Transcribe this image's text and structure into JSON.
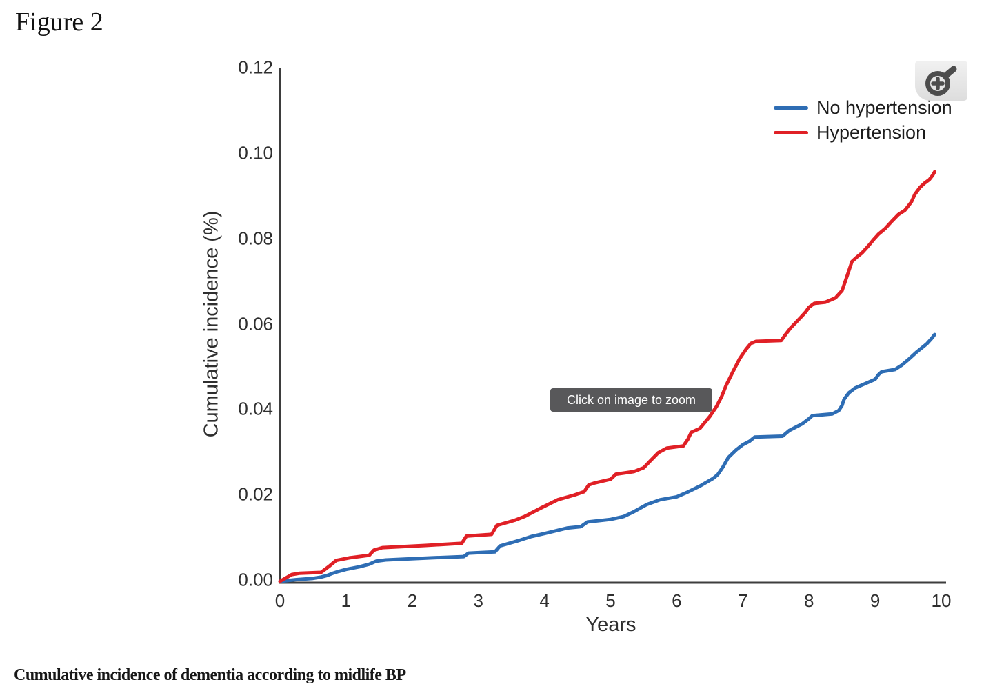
{
  "figure_label": "Figure 2",
  "caption": "Cumulative incidence of dementia according to midlife BP",
  "tooltip_text": "Click on image to zoom",
  "zoom_button": {
    "icon": "magnifier-plus-icon"
  },
  "colors": {
    "no_hypertension_line": "#2e6db4",
    "hypertension_line": "#e02026",
    "axis": "#3d3d3d",
    "tooltip_bg": "#58585a",
    "tooltip_text": "#ffffff",
    "zoom_icon": "#4d4d4d"
  },
  "chart_data": {
    "type": "line",
    "title": "",
    "xlabel": "Years",
    "ylabel": "Cumulative incidence (%)",
    "xlim": [
      0,
      10
    ],
    "ylim": [
      0,
      0.12
    ],
    "x_ticks": [
      "0",
      "1",
      "2",
      "3",
      "4",
      "5",
      "6",
      "7",
      "8",
      "9",
      "10"
    ],
    "y_ticks": [
      "0.00",
      "0.02",
      "0.04",
      "0.06",
      "0.08",
      "0.10",
      "0.12"
    ],
    "grid": false,
    "legend_position": "top-right",
    "series": [
      {
        "name": "No hypertension",
        "color": "#2e6db4",
        "points": [
          [
            0,
            0
          ],
          [
            0.25,
            0.0004
          ],
          [
            0.5,
            0.0007
          ],
          [
            0.62,
            0.001
          ],
          [
            0.72,
            0.0014
          ],
          [
            0.8,
            0.0019
          ],
          [
            0.88,
            0.0023
          ],
          [
            1.0,
            0.0028
          ],
          [
            1.2,
            0.0034
          ],
          [
            1.35,
            0.004
          ],
          [
            1.45,
            0.0047
          ],
          [
            1.6,
            0.005
          ],
          [
            2.3,
            0.0055
          ],
          [
            2.78,
            0.0058
          ],
          [
            2.85,
            0.0066
          ],
          [
            3.25,
            0.0069
          ],
          [
            3.33,
            0.0083
          ],
          [
            3.6,
            0.0095
          ],
          [
            3.8,
            0.0105
          ],
          [
            4.0,
            0.0112
          ],
          [
            4.35,
            0.0125
          ],
          [
            4.55,
            0.0128
          ],
          [
            4.65,
            0.0139
          ],
          [
            5.0,
            0.0145
          ],
          [
            5.2,
            0.0152
          ],
          [
            5.35,
            0.0163
          ],
          [
            5.55,
            0.018
          ],
          [
            5.75,
            0.0191
          ],
          [
            6.0,
            0.0198
          ],
          [
            6.15,
            0.0208
          ],
          [
            6.35,
            0.0223
          ],
          [
            6.55,
            0.0241
          ],
          [
            6.62,
            0.025
          ],
          [
            6.7,
            0.0268
          ],
          [
            6.78,
            0.029
          ],
          [
            6.9,
            0.0308
          ],
          [
            7.0,
            0.032
          ],
          [
            7.1,
            0.0328
          ],
          [
            7.18,
            0.0338
          ],
          [
            7.6,
            0.034
          ],
          [
            7.7,
            0.0353
          ],
          [
            7.9,
            0.0369
          ],
          [
            8.0,
            0.0381
          ],
          [
            8.05,
            0.0388
          ],
          [
            8.35,
            0.0392
          ],
          [
            8.45,
            0.04
          ],
          [
            8.5,
            0.0412
          ],
          [
            8.53,
            0.0426
          ],
          [
            8.6,
            0.0441
          ],
          [
            8.7,
            0.0453
          ],
          [
            8.85,
            0.0463
          ],
          [
            9.0,
            0.0473
          ],
          [
            9.05,
            0.0484
          ],
          [
            9.1,
            0.0491
          ],
          [
            9.3,
            0.0496
          ],
          [
            9.4,
            0.0506
          ],
          [
            9.5,
            0.0519
          ],
          [
            9.62,
            0.0536
          ],
          [
            9.7,
            0.0546
          ],
          [
            9.78,
            0.0556
          ],
          [
            9.85,
            0.0568
          ],
          [
            9.9,
            0.0578
          ]
        ]
      },
      {
        "name": "Hypertension",
        "color": "#e02026",
        "points": [
          [
            0,
            0
          ],
          [
            0.18,
            0.0016
          ],
          [
            0.3,
            0.0019
          ],
          [
            0.62,
            0.0021
          ],
          [
            0.75,
            0.0036
          ],
          [
            0.85,
            0.0049
          ],
          [
            1.05,
            0.0055
          ],
          [
            1.35,
            0.0061
          ],
          [
            1.42,
            0.0073
          ],
          [
            1.55,
            0.0079
          ],
          [
            2.2,
            0.0084
          ],
          [
            2.75,
            0.0089
          ],
          [
            2.82,
            0.0106
          ],
          [
            3.2,
            0.011
          ],
          [
            3.28,
            0.0131
          ],
          [
            3.55,
            0.0143
          ],
          [
            3.7,
            0.0152
          ],
          [
            3.95,
            0.0172
          ],
          [
            4.2,
            0.0191
          ],
          [
            4.45,
            0.0202
          ],
          [
            4.6,
            0.021
          ],
          [
            4.67,
            0.0226
          ],
          [
            4.75,
            0.023
          ],
          [
            5.0,
            0.0239
          ],
          [
            5.08,
            0.0251
          ],
          [
            5.35,
            0.0257
          ],
          [
            5.5,
            0.0266
          ],
          [
            5.6,
            0.0282
          ],
          [
            5.72,
            0.0301
          ],
          [
            5.85,
            0.0312
          ],
          [
            6.1,
            0.0317
          ],
          [
            6.17,
            0.0333
          ],
          [
            6.22,
            0.0349
          ],
          [
            6.35,
            0.0358
          ],
          [
            6.5,
            0.0386
          ],
          [
            6.6,
            0.0409
          ],
          [
            6.68,
            0.0433
          ],
          [
            6.75,
            0.046
          ],
          [
            6.85,
            0.0491
          ],
          [
            6.95,
            0.0521
          ],
          [
            7.05,
            0.0544
          ],
          [
            7.12,
            0.0557
          ],
          [
            7.2,
            0.0562
          ],
          [
            7.58,
            0.0564
          ],
          [
            7.65,
            0.0579
          ],
          [
            7.72,
            0.0593
          ],
          [
            7.8,
            0.0606
          ],
          [
            7.88,
            0.0619
          ],
          [
            7.95,
            0.0631
          ],
          [
            8.0,
            0.0642
          ],
          [
            8.08,
            0.0651
          ],
          [
            8.25,
            0.0654
          ],
          [
            8.4,
            0.0664
          ],
          [
            8.5,
            0.0681
          ],
          [
            8.55,
            0.0703
          ],
          [
            8.6,
            0.0726
          ],
          [
            8.65,
            0.0749
          ],
          [
            8.72,
            0.0759
          ],
          [
            8.8,
            0.0769
          ],
          [
            8.9,
            0.0786
          ],
          [
            8.98,
            0.0801
          ],
          [
            9.05,
            0.0813
          ],
          [
            9.15,
            0.0826
          ],
          [
            9.25,
            0.0843
          ],
          [
            9.35,
            0.0859
          ],
          [
            9.45,
            0.0869
          ],
          [
            9.55,
            0.0889
          ],
          [
            9.6,
            0.0906
          ],
          [
            9.68,
            0.0923
          ],
          [
            9.75,
            0.0933
          ],
          [
            9.82,
            0.0941
          ],
          [
            9.87,
            0.0951
          ],
          [
            9.9,
            0.0959
          ]
        ]
      }
    ]
  }
}
